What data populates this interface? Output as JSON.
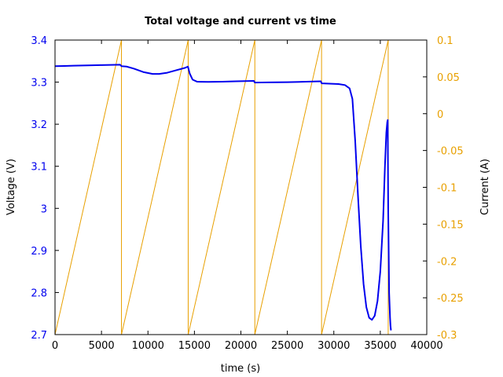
{
  "chart_data": {
    "type": "line",
    "title": "Total voltage and current vs time",
    "xlabel": "time (s)",
    "ylabel_left": "Voltage (V)",
    "ylabel_right": "Current (A)",
    "xlim": [
      0,
      40000
    ],
    "ylim_left": [
      2.7,
      3.4
    ],
    "ylim_right": [
      -0.3,
      0.1
    ],
    "x_ticks": [
      "0",
      "5000",
      "10000",
      "15000",
      "20000",
      "25000",
      "30000",
      "35000",
      "40000"
    ],
    "x_tick_values": [
      0,
      5000,
      10000,
      15000,
      20000,
      25000,
      30000,
      35000,
      40000
    ],
    "y_left_ticks": [
      "2.7",
      "2.8",
      "2.9",
      "3",
      "3.1",
      "3.2",
      "3.3",
      "3.4"
    ],
    "y_left_tick_values": [
      2.7,
      2.8,
      2.9,
      3.0,
      3.1,
      3.2,
      3.3,
      3.4
    ],
    "y_right_ticks": [
      "-0.3",
      "-0.25",
      "-0.2",
      "-0.15",
      "-0.1",
      "-0.05",
      "0",
      "0.05",
      "0.1"
    ],
    "y_right_tick_values": [
      -0.3,
      -0.25,
      -0.2,
      -0.15,
      -0.1,
      -0.05,
      0,
      0.05,
      0.1
    ],
    "grid": false,
    "colors": {
      "voltage": "#0000ee",
      "current": "#e8a000",
      "left_axis": "#0000ee",
      "right_axis": "#e8a000"
    },
    "series": [
      {
        "axis": "left",
        "x": [
          0,
          1000,
          2000,
          3000,
          4000,
          5000,
          6000,
          7000,
          7150,
          7700,
          8500,
          9500,
          10500,
          11200,
          12000,
          13000,
          14000,
          14300,
          14500,
          14800,
          15300,
          16500,
          18000,
          19500,
          21400,
          21500,
          23000,
          25000,
          27000,
          28600,
          28700,
          29500,
          30500,
          31200,
          31700,
          32000,
          32300,
          32600,
          32900,
          33200,
          33500,
          33800,
          34100,
          34400,
          34700,
          35000,
          35300,
          35500,
          35650,
          35750,
          35800,
          35850,
          35950,
          36050,
          36100,
          36150
        ],
        "y": [
          3.338,
          3.3385,
          3.339,
          3.3395,
          3.34,
          3.3405,
          3.341,
          3.3415,
          3.338,
          3.337,
          3.332,
          3.324,
          3.3195,
          3.3195,
          3.322,
          3.328,
          3.334,
          3.337,
          3.32,
          3.306,
          3.301,
          3.3005,
          3.301,
          3.302,
          3.303,
          3.299,
          3.2995,
          3.3,
          3.301,
          3.302,
          3.297,
          3.2965,
          3.2955,
          3.293,
          3.285,
          3.26,
          3.16,
          3.03,
          2.91,
          2.82,
          2.765,
          2.74,
          2.735,
          2.745,
          2.78,
          2.85,
          2.97,
          3.1,
          3.18,
          3.205,
          3.21,
          3.0,
          2.8,
          2.74,
          2.72,
          2.71
        ]
      },
      {
        "axis": "right",
        "x": [
          0,
          7150,
          7150,
          14330,
          14330,
          21500,
          21500,
          28680,
          28680,
          35850,
          35850
        ],
        "y": [
          -0.3,
          0.1,
          -0.3,
          0.1,
          -0.3,
          0.1,
          -0.3,
          0.1,
          -0.3,
          0.1,
          -0.3
        ]
      }
    ]
  }
}
